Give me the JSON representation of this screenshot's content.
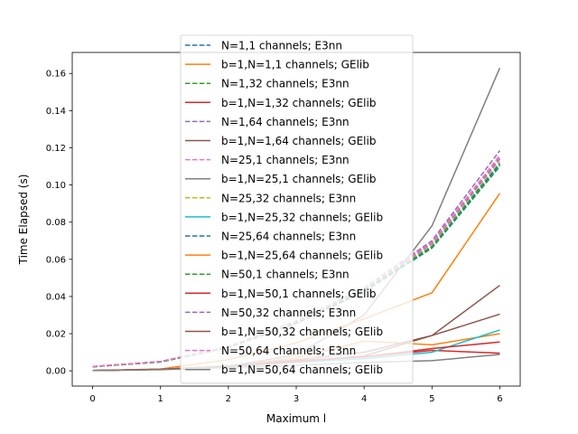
{
  "chart_data": {
    "type": "line",
    "xlabel": "Maximum l",
    "ylabel": "Time Elapsed (s)",
    "xlim": [
      -0.3,
      6.3
    ],
    "ylim": [
      -0.0082,
      0.1713
    ],
    "x_ticks": [
      0,
      1,
      2,
      3,
      4,
      5,
      6
    ],
    "y_ticks": [
      0.0,
      0.02,
      0.04,
      0.06,
      0.08,
      0.1,
      0.12,
      0.14,
      0.16
    ],
    "y_tick_labels": [
      "0.00",
      "0.02",
      "0.04",
      "0.06",
      "0.08",
      "0.10",
      "0.12",
      "0.14",
      "0.16"
    ],
    "grid": false,
    "legend_position": "upper center",
    "x": [
      0,
      1,
      2,
      3,
      4,
      5,
      6
    ],
    "series": [
      {
        "name": "N=1,1 channels; E3nn",
        "color": "#1f77b4",
        "dash": true,
        "values": [
          0.0022,
          0.0048,
          0.0125,
          0.0255,
          0.0425,
          0.066,
          0.11
        ]
      },
      {
        "name": "b=1,N=1,1 channels; GElib",
        "color": "#ff7f0e",
        "dash": false,
        "values": [
          0.0002,
          0.0008,
          0.0025,
          0.007,
          0.016,
          0.014,
          0.02
        ]
      },
      {
        "name": "N=1,32 channels; E3nn",
        "color": "#2ca02c",
        "dash": true,
        "values": [
          0.0022,
          0.0048,
          0.0126,
          0.0258,
          0.043,
          0.0668,
          0.111
        ]
      },
      {
        "name": "b=1,N=1,32 channels; GElib",
        "color": "#d62728",
        "dash": false,
        "values": [
          0.0002,
          0.0008,
          0.0025,
          0.0055,
          0.0075,
          0.011,
          0.0095
        ]
      },
      {
        "name": "N=1,64 channels; E3nn",
        "color": "#9467bd",
        "dash": true,
        "values": [
          0.0023,
          0.005,
          0.013,
          0.0262,
          0.044,
          0.0685,
          0.114
        ]
      },
      {
        "name": "b=1,N=1,64 channels; GElib",
        "color": "#8c564b",
        "dash": false,
        "values": [
          0.0002,
          0.0008,
          0.0025,
          0.005,
          0.008,
          0.019,
          0.046
        ]
      },
      {
        "name": "N=25,1 channels; E3nn",
        "color": "#e377c2",
        "dash": true,
        "values": [
          0.0023,
          0.005,
          0.013,
          0.0265,
          0.044,
          0.069,
          0.115
        ]
      },
      {
        "name": "b=1,N=25,1 channels; GElib",
        "color": "#7f7f7f",
        "dash": false,
        "values": [
          0.0002,
          0.0008,
          0.0025,
          0.0085,
          0.03,
          0.078,
          0.163
        ]
      },
      {
        "name": "N=25,32 channels; E3nn",
        "color": "#bcbd22",
        "dash": true,
        "values": [
          0.0022,
          0.0048,
          0.0128,
          0.026,
          0.0435,
          0.0675,
          0.1125
        ]
      },
      {
        "name": "b=1,N=25,32 channels; GElib",
        "color": "#17becf",
        "dash": false,
        "values": [
          0.0002,
          0.0008,
          0.0022,
          0.0045,
          0.0065,
          0.01,
          0.022
        ]
      },
      {
        "name": "N=25,64 channels; E3nn",
        "color": "#1f77b4",
        "dash": true,
        "values": [
          0.0022,
          0.0048,
          0.0126,
          0.0258,
          0.0432,
          0.0668,
          0.1115
        ]
      },
      {
        "name": "b=1,N=25,64 channels; GElib",
        "color": "#ff7f0e",
        "dash": false,
        "values": [
          0.0002,
          0.001,
          0.006,
          0.015,
          0.028,
          0.042,
          0.0955
        ]
      },
      {
        "name": "N=50,1 channels; E3nn",
        "color": "#2ca02c",
        "dash": true,
        "values": [
          0.0022,
          0.0048,
          0.0125,
          0.0256,
          0.0428,
          0.0665,
          0.1105
        ]
      },
      {
        "name": "b=1,N=50,1 channels; GElib",
        "color": "#d62728",
        "dash": false,
        "values": [
          0.0002,
          0.0008,
          0.0025,
          0.005,
          0.0075,
          0.012,
          0.0155
        ]
      },
      {
        "name": "N=50,32 channels; E3nn",
        "color": "#9467bd",
        "dash": true,
        "values": [
          0.0023,
          0.005,
          0.0132,
          0.0268,
          0.0445,
          0.07,
          0.1185
        ]
      },
      {
        "name": "b=1,N=50,32 channels; GElib",
        "color": "#8c564b",
        "dash": false,
        "values": [
          0.0002,
          0.0008,
          0.0025,
          0.006,
          0.01,
          0.019,
          0.0305
        ]
      },
      {
        "name": "N=50,64 channels; E3nn",
        "color": "#e377c2",
        "dash": true,
        "values": [
          0.0023,
          0.005,
          0.013,
          0.0264,
          0.0442,
          0.0692,
          0.116
        ]
      },
      {
        "name": "b=1,N=50,64 channels; GElib",
        "color": "#7f7f7f",
        "dash": false,
        "values": [
          0.0002,
          0.0006,
          0.0018,
          0.003,
          0.0045,
          0.0055,
          0.0088
        ]
      }
    ]
  }
}
